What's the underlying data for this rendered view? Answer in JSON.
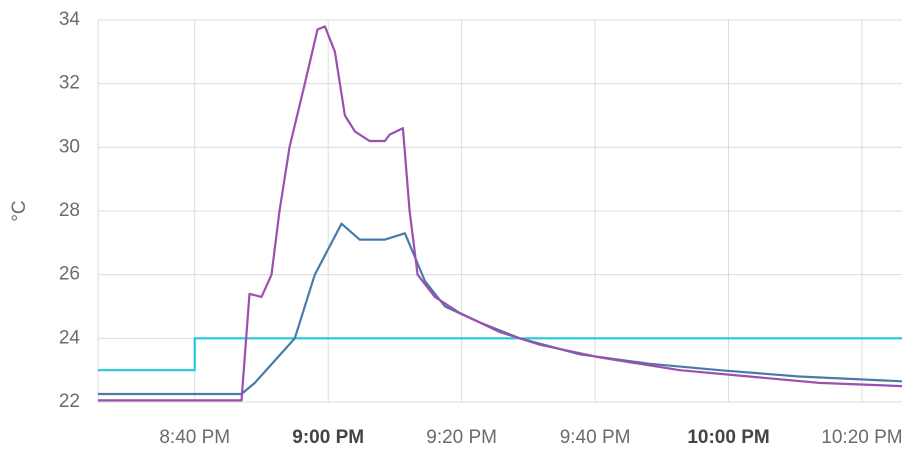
{
  "chart_data": {
    "type": "line",
    "ylabel": "°C",
    "xlim": [
      1225.5,
      1346
    ],
    "ylim": [
      22,
      34
    ],
    "xticks": [
      {
        "value": 1240,
        "label": "8:40 PM"
      },
      {
        "value": 1260,
        "label": "9:00 PM"
      },
      {
        "value": 1280,
        "label": "9:20 PM"
      },
      {
        "value": 1300,
        "label": "9:40 PM"
      },
      {
        "value": 1320,
        "label": "10:00 PM"
      },
      {
        "value": 1340,
        "label": "10:20 PM"
      }
    ],
    "yticks": [
      22,
      24,
      26,
      28,
      30,
      32,
      34
    ],
    "grid": true,
    "series": [
      {
        "color": "#22c9dc",
        "x": [
          1225.5,
          1240,
          1240,
          1346
        ],
        "values": [
          23,
          23,
          24,
          24
        ]
      },
      {
        "color": "#4a7aa8",
        "x": [
          1225.5,
          1247,
          1249,
          1252,
          1255,
          1258,
          1262,
          1264.7,
          1268.5,
          1271.5,
          1272.5,
          1274.5,
          1277.5,
          1282.7,
          1288.7,
          1297.7,
          1308.2,
          1318.7,
          1330.6,
          1346
        ],
        "values": [
          22.25,
          22.25,
          22.6,
          23.3,
          24,
          26,
          27.6,
          27.1,
          27.1,
          27.3,
          26.8,
          25.8,
          25,
          24.5,
          24,
          23.5,
          23.2,
          23,
          22.8,
          22.65
        ]
      },
      {
        "color": "#9b4fae",
        "x": [
          1225.5,
          1247,
          1248.2,
          1250,
          1251.5,
          1252.7,
          1254.2,
          1256.5,
          1258.4,
          1259.5,
          1261,
          1262.5,
          1264,
          1266.2,
          1268.5,
          1269.2,
          1271.2,
          1272.2,
          1273.4,
          1276,
          1279.7,
          1285.7,
          1291.7,
          1300.7,
          1312.7,
          1323.1,
          1333.6,
          1346
        ],
        "values": [
          22.05,
          22.05,
          25.4,
          25.3,
          26,
          28,
          30,
          32,
          33.7,
          33.8,
          33,
          31,
          30.5,
          30.2,
          30.2,
          30.4,
          30.6,
          28,
          26,
          25.3,
          24.8,
          24.2,
          23.8,
          23.4,
          23,
          22.8,
          22.6,
          22.5
        ]
      }
    ]
  }
}
